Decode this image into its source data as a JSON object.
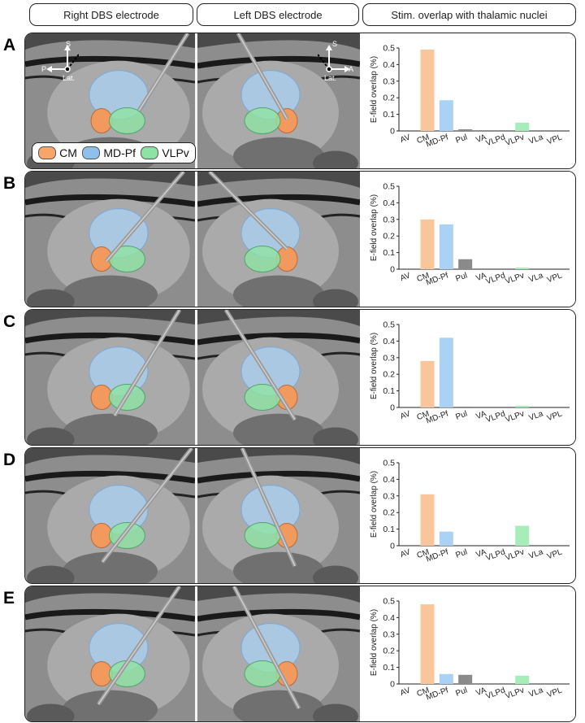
{
  "headers": [
    "Right DBS electrode",
    "Left DBS electrode",
    "Stim. overlap with thalamic nuclei"
  ],
  "legend": [
    {
      "label": "CM",
      "color": "#f7a56a"
    },
    {
      "label": "MD-Pf",
      "color": "#8fc0ec"
    },
    {
      "label": "VLPv",
      "color": "#8ee3a4"
    }
  ],
  "orientation": {
    "right": {
      "up": "S",
      "side": "P",
      "center": "Lat."
    },
    "left": {
      "up": "S",
      "side": "A",
      "center": "Lat."
    }
  },
  "colors": {
    "CM": "#f9c59a",
    "MD-Pf": "#a9d2f4",
    "Pul": "#8a8a8a",
    "VLPv": "#a7edb9",
    "grid": "#ffffff"
  },
  "chart_data": [
    {
      "panel": "A",
      "type": "bar",
      "categories": [
        "AV",
        "CM",
        "MD-Pf",
        "Pul",
        "VA",
        "VLPd",
        "VLPv",
        "VLa",
        "VPL"
      ],
      "values": [
        0,
        0.49,
        0.185,
        0.01,
        0,
        0,
        0.05,
        0,
        0
      ],
      "ylabel": "E-field overlap (%)",
      "ylim": [
        0,
        0.5
      ],
      "yticks": [
        "0",
        "0.1",
        "0.2",
        "0.3",
        "0.4",
        "0.5"
      ]
    },
    {
      "panel": "B",
      "type": "bar",
      "categories": [
        "AV",
        "CM",
        "MD-Pf",
        "Pul",
        "VA",
        "VLPd",
        "VLPv",
        "VLa",
        "VPL"
      ],
      "values": [
        0,
        0.3,
        0.27,
        0.06,
        0,
        0,
        0.01,
        0,
        0
      ],
      "ylabel": "E-field overlap (%)",
      "ylim": [
        0,
        0.5
      ],
      "yticks": [
        "0",
        "0.1",
        "0.2",
        "0.3",
        "0.4",
        "0.5"
      ]
    },
    {
      "panel": "C",
      "type": "bar",
      "categories": [
        "AV",
        "CM",
        "MD-Pf",
        "Pul",
        "VA",
        "VLPd",
        "VLPv",
        "VLa",
        "VPL"
      ],
      "values": [
        0,
        0.28,
        0.42,
        0.005,
        0,
        0,
        0.01,
        0,
        0
      ],
      "ylabel": "E-field overlap (%)",
      "ylim": [
        0,
        0.5
      ],
      "yticks": [
        "0",
        "0.1",
        "0.2",
        "0.3",
        "0.4",
        "0.5"
      ]
    },
    {
      "panel": "D",
      "type": "bar",
      "categories": [
        "AV",
        "CM",
        "MD-Pf",
        "Pul",
        "VA",
        "VLPd",
        "VLPv",
        "VLa",
        "VPL"
      ],
      "values": [
        0,
        0.31,
        0.085,
        0,
        0,
        0,
        0.12,
        0,
        0
      ],
      "ylabel": "E-field overlap (%)",
      "ylim": [
        0,
        0.5
      ],
      "yticks": [
        "0",
        "0.1",
        "0.2",
        "0.3",
        "0.4",
        "0.5"
      ]
    },
    {
      "panel": "E",
      "type": "bar",
      "categories": [
        "AV",
        "CM",
        "MD-Pf",
        "Pul",
        "VA",
        "VLPd",
        "VLPv",
        "VLa",
        "VPL"
      ],
      "values": [
        0,
        0.48,
        0.06,
        0.055,
        0,
        0,
        0.05,
        0,
        0
      ],
      "ylabel": "E-field overlap (%)",
      "ylim": [
        0,
        0.5
      ],
      "yticks": [
        "0",
        "0.1",
        "0.2",
        "0.3",
        "0.4",
        "0.5"
      ]
    }
  ]
}
